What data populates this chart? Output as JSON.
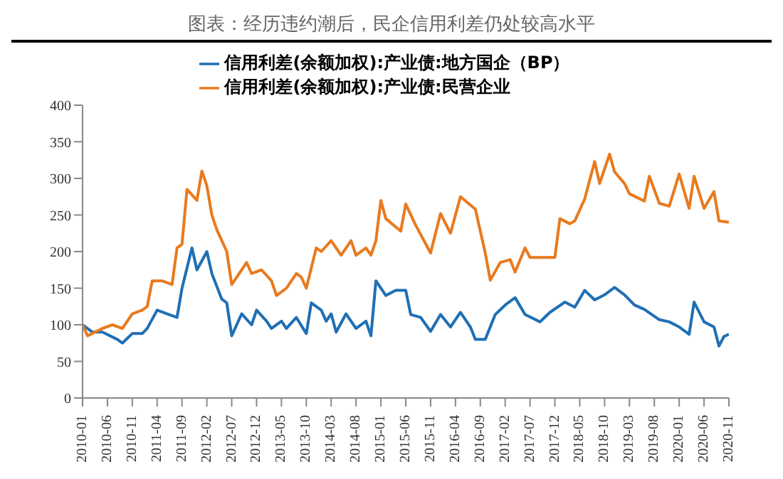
{
  "chart_data": {
    "type": "line",
    "title": "图表：经历违约潮后，民企信用利差仍处较高水平",
    "legend": "top",
    "marker": "none",
    "line_style": "solid",
    "xlim": [
      "2010-01",
      "2020-11"
    ],
    "xticks": [
      "2010-01",
      "2010-06",
      "2010-11",
      "2011-04",
      "2011-09",
      "2012-02",
      "2012-07",
      "2012-12",
      "2013-05",
      "2013-10",
      "2014-03",
      "2014-08",
      "2015-01",
      "2015-06",
      "2015-11",
      "2016-04",
      "2016-09",
      "2017-02",
      "2017-07",
      "2017-12",
      "2018-05",
      "2018-10",
      "2019-03",
      "2019-08",
      "2020-01",
      "2020-06",
      "2020-11"
    ],
    "ylim": [
      0,
      400
    ],
    "yticks": [
      0,
      50,
      100,
      150,
      200,
      250,
      300,
      350,
      400
    ],
    "series": [
      {
        "name": "信用利差(余额加权):产业债:地方国企（BP）",
        "color": "#1f6fb4",
        "x": [
          "2010-01",
          "2010-03",
          "2010-05",
          "2010-08",
          "2010-09",
          "2010-11",
          "2011-01",
          "2011-02",
          "2011-04",
          "2011-06",
          "2011-08",
          "2011-09",
          "2011-11",
          "2011-12",
          "2012-02",
          "2012-03",
          "2012-05",
          "2012-06",
          "2012-07",
          "2012-09",
          "2012-11",
          "2012-12",
          "2013-02",
          "2013-03",
          "2013-05",
          "2013-06",
          "2013-08",
          "2013-10",
          "2013-11",
          "2014-01",
          "2014-02",
          "2014-03",
          "2014-04",
          "2014-06",
          "2014-08",
          "2014-10",
          "2014-11",
          "2014-12",
          "2015-02",
          "2015-04",
          "2015-06",
          "2015-07",
          "2015-09",
          "2015-11",
          "2016-01",
          "2016-03",
          "2016-05",
          "2016-07",
          "2016-08",
          "2016-10",
          "2016-12",
          "2017-02",
          "2017-04",
          "2017-06",
          "2017-09",
          "2017-11",
          "2018-02",
          "2018-04",
          "2018-06",
          "2018-08",
          "2018-10",
          "2018-12",
          "2019-02",
          "2019-04",
          "2019-06",
          "2019-09",
          "2019-11",
          "2020-01",
          "2020-03",
          "2020-04",
          "2020-06",
          "2020-08",
          "2020-09",
          "2020-10",
          "2020-11"
        ],
        "values": [
          100,
          90,
          90,
          80,
          75,
          88,
          88,
          95,
          120,
          115,
          110,
          150,
          205,
          175,
          200,
          170,
          135,
          130,
          85,
          115,
          100,
          120,
          105,
          95,
          105,
          95,
          110,
          88,
          130,
          120,
          105,
          115,
          90,
          115,
          95,
          105,
          85,
          160,
          140,
          147,
          147,
          114,
          110,
          91,
          114,
          97,
          117,
          97,
          80,
          80,
          114,
          127,
          137,
          114,
          104,
          117,
          131,
          124,
          147,
          134,
          141,
          151,
          141,
          127,
          121,
          107,
          104,
          97,
          87,
          131,
          104,
          97,
          71,
          84,
          87
        ]
      },
      {
        "name": "信用利差(余额加权):产业债:民营企业",
        "color": "#e87a1e",
        "x": [
          "2010-01",
          "2010-02",
          "2010-05",
          "2010-07",
          "2010-09",
          "2010-11",
          "2011-01",
          "2011-02",
          "2011-03",
          "2011-05",
          "2011-07",
          "2011-08",
          "2011-09",
          "2011-10",
          "2011-12",
          "2012-01",
          "2012-02",
          "2012-03",
          "2012-04",
          "2012-06",
          "2012-07",
          "2012-08",
          "2012-10",
          "2012-11",
          "2013-01",
          "2013-03",
          "2013-04",
          "2013-06",
          "2013-08",
          "2013-09",
          "2013-10",
          "2013-12",
          "2014-01",
          "2014-03",
          "2014-05",
          "2014-07",
          "2014-08",
          "2014-10",
          "2014-11",
          "2014-12",
          "2015-01",
          "2015-02",
          "2015-05",
          "2015-06",
          "2015-08",
          "2015-11",
          "2016-01",
          "2016-03",
          "2016-05",
          "2016-08",
          "2016-10",
          "2016-11",
          "2017-01",
          "2017-03",
          "2017-04",
          "2017-06",
          "2017-07",
          "2017-09",
          "2017-12",
          "2018-01",
          "2018-03",
          "2018-04",
          "2018-06",
          "2018-08",
          "2018-09",
          "2018-11",
          "2018-12",
          "2019-02",
          "2019-03",
          "2019-06",
          "2019-07",
          "2019-09",
          "2019-11",
          "2020-01",
          "2020-03",
          "2020-04",
          "2020-06",
          "2020-08",
          "2020-09",
          "2020-11"
        ],
        "values": [
          100,
          85,
          95,
          100,
          95,
          115,
          120,
          125,
          160,
          160,
          155,
          205,
          210,
          285,
          270,
          310,
          290,
          250,
          230,
          200,
          155,
          165,
          185,
          170,
          175,
          160,
          140,
          150,
          170,
          165,
          150,
          205,
          200,
          215,
          195,
          215,
          195,
          205,
          195,
          215,
          270,
          245,
          228,
          265,
          236,
          198,
          252,
          225,
          275,
          258,
          198,
          161,
          185,
          189,
          172,
          205,
          192,
          192,
          192,
          245,
          238,
          242,
          272,
          323,
          293,
          333,
          309,
          293,
          279,
          269,
          303,
          266,
          262,
          306,
          259,
          303,
          259,
          282,
          242,
          240
        ]
      }
    ]
  }
}
